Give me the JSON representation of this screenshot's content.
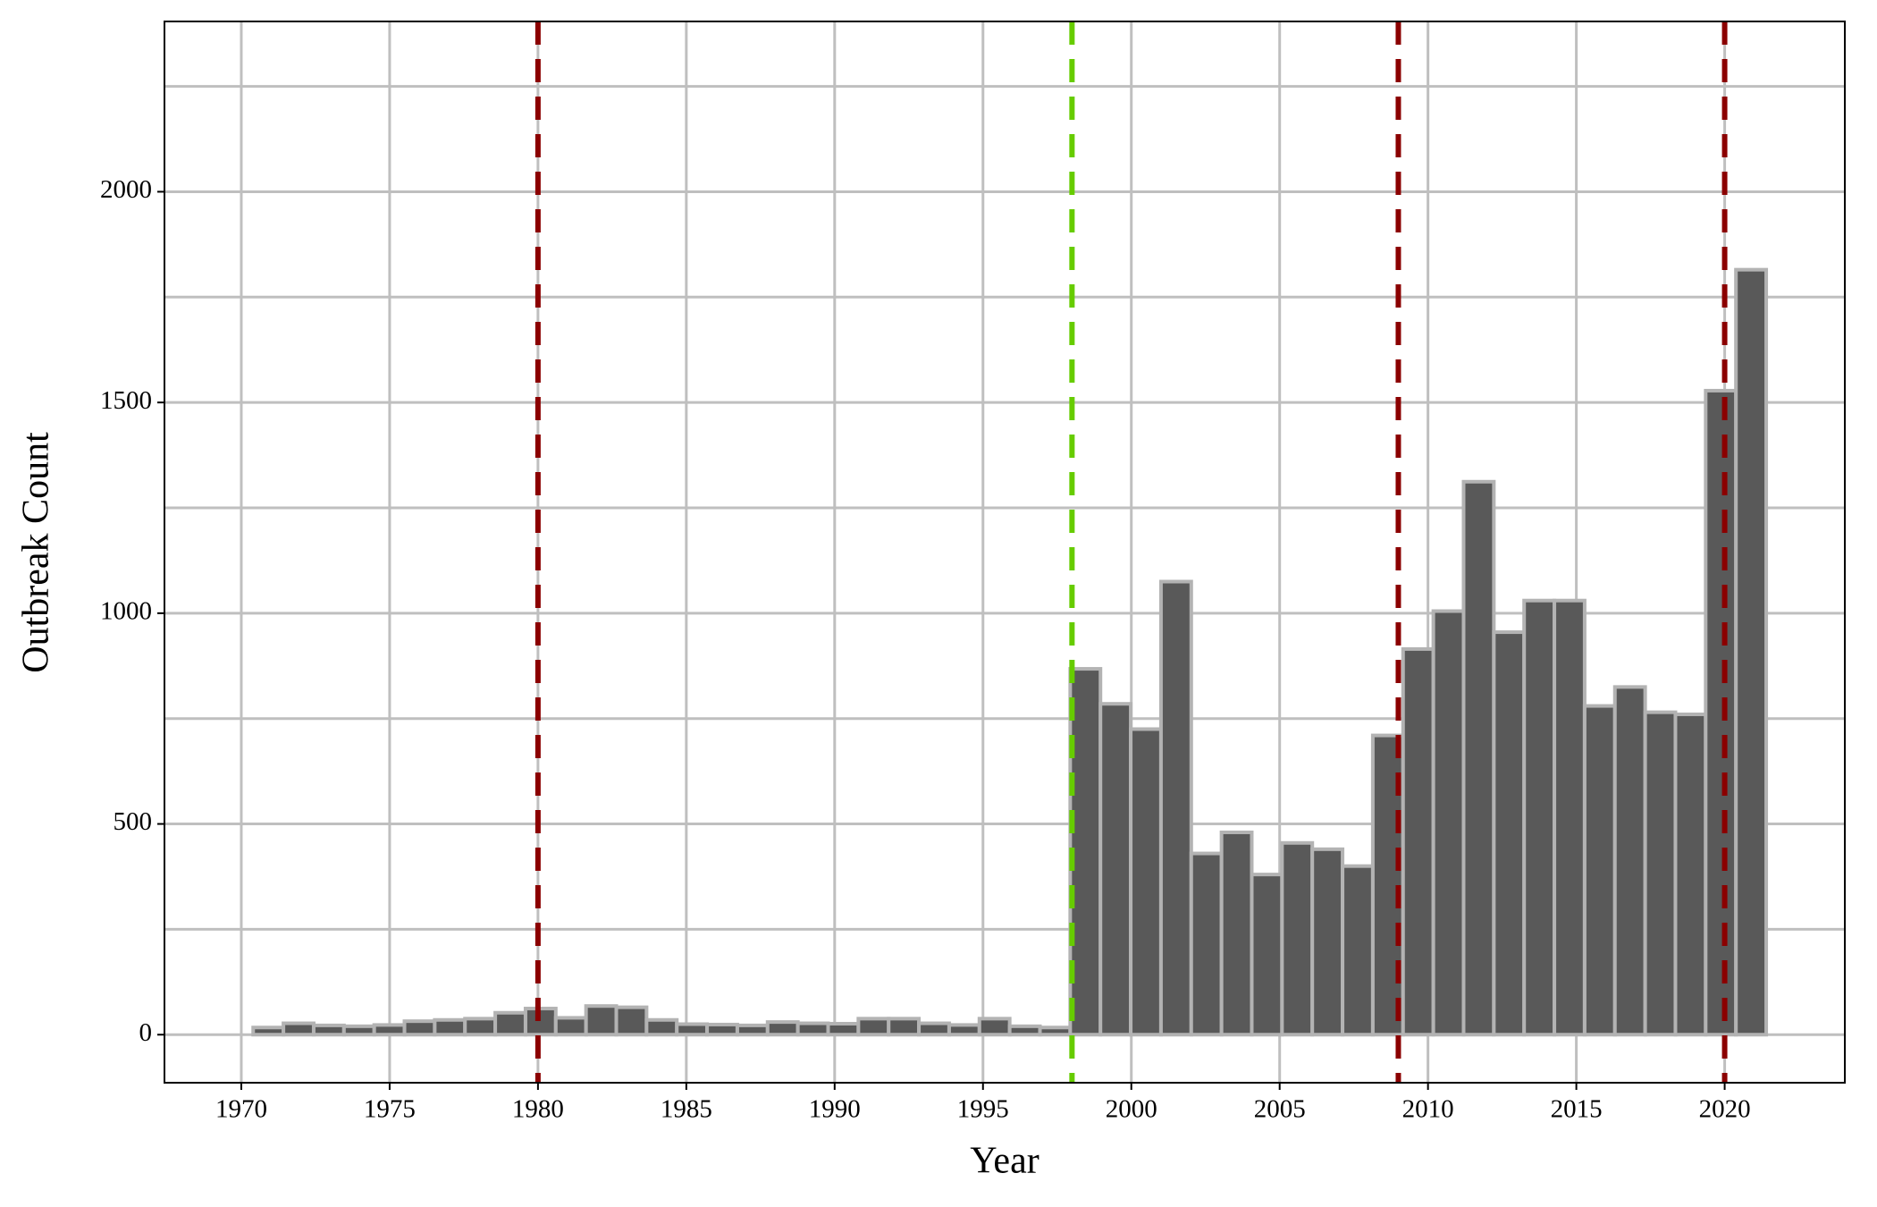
{
  "chart_data": {
    "type": "histogram",
    "xlabel": "Year",
    "ylabel": "Outbreak Count",
    "bins": [
      1970.4,
      1971.42,
      1972.44,
      1973.46,
      1974.48,
      1975.5,
      1976.52,
      1977.54,
      1978.56,
      1979.58,
      1980.6,
      1981.62,
      1982.64,
      1983.66,
      1984.68,
      1985.7,
      1986.72,
      1987.74,
      1988.76,
      1989.78,
      1990.8,
      1991.82,
      1992.84,
      1993.86,
      1994.88,
      1995.9,
      1996.92,
      1997.94,
      1998.96,
      1999.98,
      2001,
      2002.02,
      2003.04,
      2004.06,
      2005.08,
      2006.1,
      2007.12,
      2008.14,
      2009.16,
      2010.18,
      2011.2,
      2012.22,
      2013.24,
      2014.26,
      2015.28,
      2016.3,
      2017.32,
      2018.34,
      2019.36,
      2020.38,
      2021.4
    ],
    "counts": [
      17,
      27,
      22,
      20,
      23,
      32,
      35,
      38,
      52,
      62,
      40,
      68,
      65,
      35,
      25,
      24,
      22,
      30,
      27,
      26,
      38,
      38,
      27,
      23,
      38,
      20,
      17,
      868,
      785,
      725,
      1075,
      430,
      480,
      380,
      455,
      440,
      400,
      710,
      915,
      1005,
      1312,
      955,
      1030,
      1030,
      780,
      825,
      765,
      760,
      1528,
      1815
    ],
    "color": "#595959",
    "edgecolor": "#b3b3b3",
    "vlines": [
      {
        "x": 1980,
        "color": "#8b0000"
      },
      {
        "x": 1998,
        "color": "#66cc00"
      },
      {
        "x": 2009,
        "color": "#8b0000"
      },
      {
        "x": 2020,
        "color": "#8b0000"
      }
    ],
    "xlim": [
      1967.41,
      2024.05
    ],
    "ylim": [
      -114,
      2404
    ],
    "xticks": [
      1970,
      1975,
      1980,
      1985,
      1990,
      1995,
      2000,
      2005,
      2010,
      2015,
      2020
    ],
    "yticks": [
      0,
      500,
      1000,
      1500,
      2000
    ],
    "yminor": [
      250,
      750,
      1250,
      1750,
      2250
    ],
    "grid": true
  }
}
